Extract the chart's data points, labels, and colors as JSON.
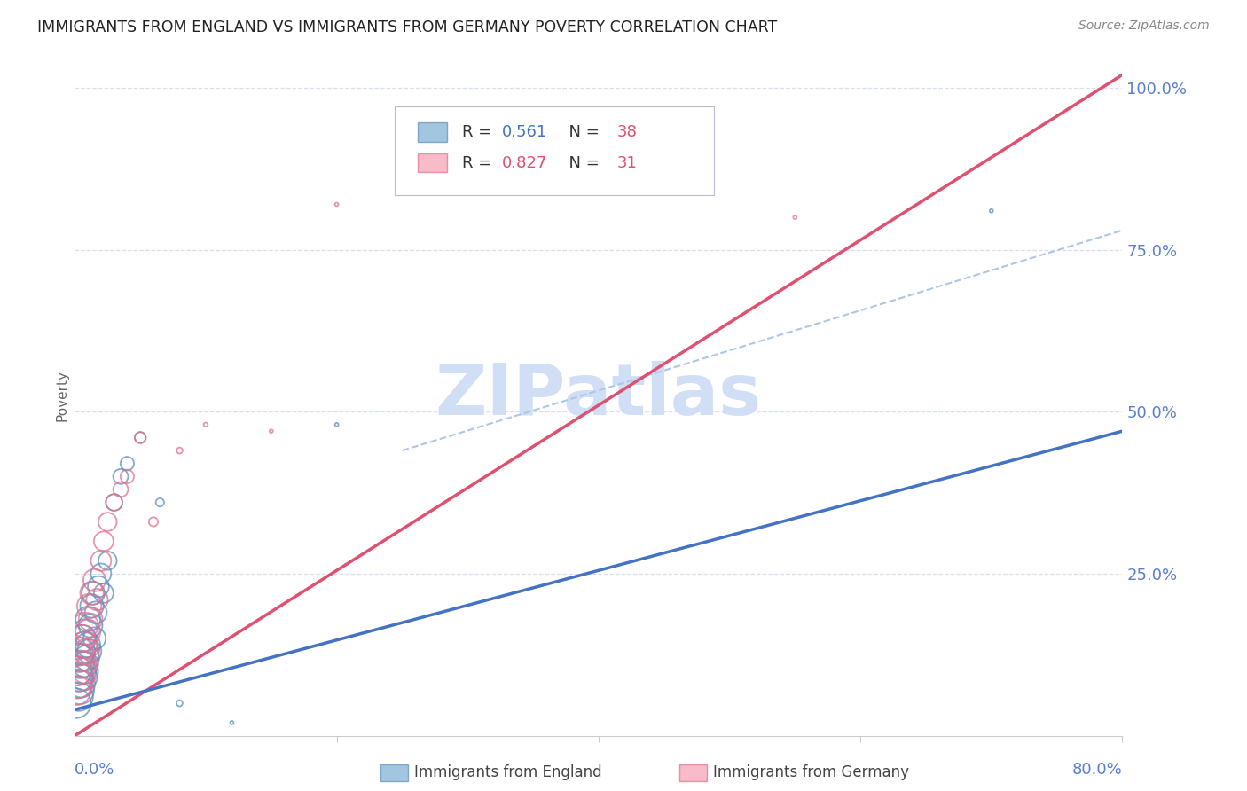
{
  "title": "IMMIGRANTS FROM ENGLAND VS IMMIGRANTS FROM GERMANY POVERTY CORRELATION CHART",
  "source": "Source: ZipAtlas.com",
  "ylabel": "Poverty",
  "ytick_labels": [
    "100.0%",
    "75.0%",
    "50.0%",
    "25.0%"
  ],
  "ytick_values": [
    1.0,
    0.75,
    0.5,
    0.25
  ],
  "xlim": [
    0.0,
    0.8
  ],
  "ylim": [
    0.0,
    1.05
  ],
  "england_R": 0.561,
  "england_N": 38,
  "germany_R": 0.827,
  "germany_N": 31,
  "england_color": "#7bafd4",
  "england_edge_color": "#5b8fbf",
  "germany_color": "#f4a0b0",
  "germany_edge_color": "#e07090",
  "england_line_color": "#4472c4",
  "germany_line_color": "#e05070",
  "dashed_line_color": "#aec6e8",
  "grid_color": "#d8dff0",
  "axis_label_color": "#5b7fcc",
  "watermark_color": "#d0dff5",
  "background_color": "#ffffff",
  "england_legend_color": "#4472c4",
  "germany_legend_color": "#e05070",
  "n_legend_color": "#e05070",
  "eng_line_x0": 0.0,
  "eng_line_y0": 0.04,
  "eng_line_x1": 0.8,
  "eng_line_y1": 0.47,
  "ger_line_x0": 0.0,
  "ger_line_y0": 0.0,
  "ger_line_x1": 0.8,
  "ger_line_y1": 1.02,
  "dash_line_x0": 0.25,
  "dash_line_y0": 0.44,
  "dash_line_x1": 0.8,
  "dash_line_y1": 0.78
}
